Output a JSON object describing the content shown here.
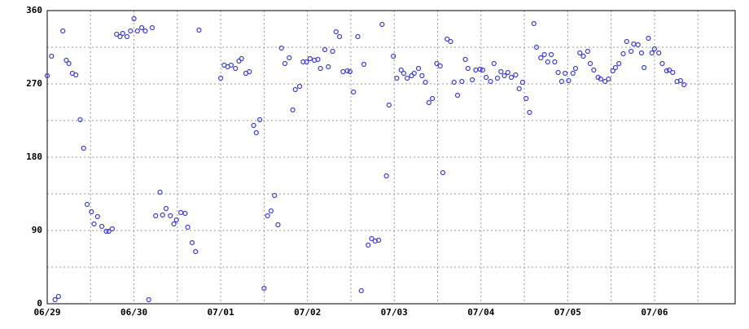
{
  "chart_data": {
    "type": "scatter",
    "xlim": [
      0,
      7.93
    ],
    "xticks": [
      {
        "value": 0,
        "label": "06/29"
      },
      {
        "value": 1,
        "label": "06/30"
      },
      {
        "value": 2,
        "label": "07/01"
      },
      {
        "value": 3,
        "label": "07/02"
      },
      {
        "value": 4,
        "label": "07/03"
      },
      {
        "value": 5,
        "label": "07/04"
      },
      {
        "value": 6,
        "label": "07/05"
      },
      {
        "value": 7,
        "label": "07/06"
      }
    ],
    "x_minor_ticks": [
      0.5,
      1.5,
      2.5,
      3.5,
      4.5,
      5.5,
      6.5,
      7.5
    ],
    "ylim": [
      0,
      360
    ],
    "yticks": [
      0,
      90,
      180,
      270,
      360
    ],
    "y_minor_ticks": [
      45,
      135,
      225,
      315
    ],
    "grid": true,
    "color": "#4040d0",
    "x": [
      0.0,
      0.05,
      0.09,
      0.13,
      0.18,
      0.22,
      0.25,
      0.29,
      0.33,
      0.38,
      0.42,
      0.46,
      0.51,
      0.54,
      0.58,
      0.63,
      0.68,
      0.71,
      0.75,
      0.8,
      0.84,
      0.87,
      0.92,
      0.96,
      1.0,
      1.04,
      1.09,
      1.13,
      1.17,
      1.21,
      1.25,
      1.3,
      1.33,
      1.37,
      1.42,
      1.46,
      1.49,
      1.54,
      1.59,
      1.62,
      1.67,
      1.71,
      1.75,
      2.0,
      2.04,
      2.08,
      2.12,
      2.17,
      2.21,
      2.24,
      2.29,
      2.33,
      2.38,
      2.41,
      2.45,
      2.5,
      2.54,
      2.58,
      2.62,
      2.66,
      2.7,
      2.74,
      2.79,
      2.83,
      2.86,
      2.91,
      2.95,
      2.99,
      3.03,
      3.08,
      3.12,
      3.15,
      3.2,
      3.24,
      3.29,
      3.33,
      3.37,
      3.41,
      3.46,
      3.49,
      3.53,
      3.58,
      3.62,
      3.65,
      3.7,
      3.74,
      3.78,
      3.82,
      3.86,
      3.91,
      3.94,
      3.99,
      4.03,
      4.08,
      4.11,
      4.15,
      4.2,
      4.23,
      4.28,
      4.32,
      4.36,
      4.4,
      4.44,
      4.49,
      4.53,
      4.56,
      4.61,
      4.65,
      4.69,
      4.73,
      4.78,
      4.82,
      4.85,
      4.9,
      4.94,
      4.99,
      5.02,
      5.06,
      5.11,
      5.15,
      5.19,
      5.23,
      5.27,
      5.31,
      5.35,
      5.4,
      5.44,
      5.48,
      5.52,
      5.56,
      5.61,
      5.64,
      5.69,
      5.73,
      5.77,
      5.81,
      5.85,
      5.89,
      5.93,
      5.97,
      6.01,
      6.06,
      6.09,
      6.14,
      6.18,
      6.23,
      6.26,
      6.3,
      6.35,
      6.38,
      6.43,
      6.47,
      6.52,
      6.55,
      6.59,
      6.64,
      6.68,
      6.73,
      6.76,
      6.81,
      6.85,
      6.88,
      6.93,
      6.97,
      7.0,
      7.05,
      7.09,
      7.14,
      7.17,
      7.21,
      7.26,
      7.3,
      7.34
    ],
    "values": [
      280,
      304,
      5,
      9,
      335,
      299,
      295,
      283,
      281,
      226,
      191,
      122,
      113,
      98,
      107,
      95,
      89,
      89,
      92,
      331,
      328,
      332,
      328,
      335,
      350,
      335,
      339,
      335,
      5,
      339,
      108,
      137,
      109,
      117,
      108,
      98,
      103,
      112,
      111,
      94,
      75,
      64,
      336,
      277,
      293,
      291,
      293,
      289,
      298,
      301,
      283,
      285,
      219,
      210,
      226,
      19,
      108,
      114,
      133,
      97,
      314,
      295,
      302,
      238,
      263,
      267,
      297,
      297,
      301,
      299,
      300,
      289,
      312,
      291,
      310,
      334,
      328,
      285,
      286,
      285,
      260,
      328,
      16,
      294,
      72,
      80,
      77,
      78,
      343,
      157,
      244,
      304,
      277,
      287,
      283,
      277,
      280,
      283,
      289,
      280,
      272,
      247,
      252,
      295,
      292,
      161,
      325,
      322,
      272,
      256,
      273,
      300,
      289,
      275,
      287,
      288,
      287,
      278,
      273,
      295,
      277,
      285,
      280,
      284,
      278,
      281,
      264,
      272,
      252,
      235,
      344,
      315,
      302,
      306,
      297,
      306,
      297,
      284,
      273,
      283,
      274,
      283,
      289,
      308,
      304,
      310,
      295,
      287,
      278,
      276,
      273,
      276,
      286,
      290,
      295,
      307,
      322,
      310,
      319,
      318,
      308,
      290,
      326,
      308,
      313,
      308,
      295,
      286,
      287,
      284,
      273,
      274,
      269
    ]
  }
}
